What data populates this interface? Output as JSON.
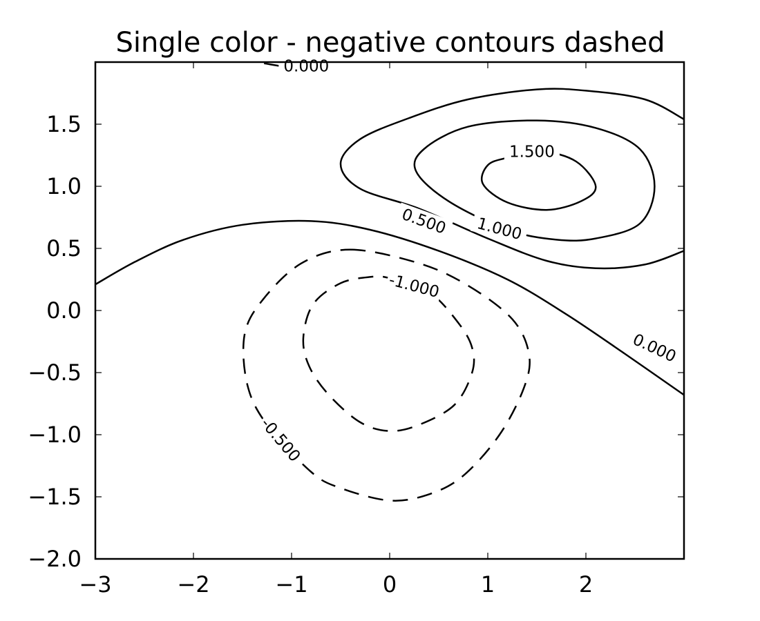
{
  "chart_data": {
    "type": "contour",
    "title": "Single color - negative contours dashed",
    "xlabel": "",
    "ylabel": "",
    "xlim": [
      -3.0,
      3.0
    ],
    "ylim": [
      -2.0,
      2.0
    ],
    "x_ticks": [
      {
        "value": -3,
        "label": "−3"
      },
      {
        "value": -2,
        "label": "−2"
      },
      {
        "value": -1,
        "label": "−1"
      },
      {
        "value": 0,
        "label": "0"
      },
      {
        "value": 1,
        "label": "1"
      },
      {
        "value": 2,
        "label": "2"
      }
    ],
    "y_ticks": [
      {
        "value": -2.0,
        "label": "−2.0"
      },
      {
        "value": -1.5,
        "label": "−1.5"
      },
      {
        "value": -1.0,
        "label": "−1.0"
      },
      {
        "value": -0.5,
        "label": "−0.5"
      },
      {
        "value": 0.0,
        "label": "0.0"
      },
      {
        "value": 0.5,
        "label": "0.5"
      },
      {
        "value": 1.0,
        "label": "1.0"
      },
      {
        "value": 1.5,
        "label": "1.5"
      }
    ],
    "grid": false,
    "line_color": "#000000",
    "negative_style": "dashed",
    "levels": [
      {
        "level": -1.0,
        "label": "-1.000",
        "label_at": [
          0.25,
          0.2
        ],
        "label_angle": 15,
        "closed": true,
        "points": [
          [
            0.0,
            0.26
          ],
          [
            0.4,
            0.15
          ],
          [
            0.7,
            -0.1
          ],
          [
            0.84,
            -0.3
          ],
          [
            0.84,
            -0.5
          ],
          [
            0.66,
            -0.76
          ],
          [
            0.3,
            -0.92
          ],
          [
            0.0,
            -0.97
          ],
          [
            -0.3,
            -0.9
          ],
          [
            -0.62,
            -0.68
          ],
          [
            -0.82,
            -0.45
          ],
          [
            -0.88,
            -0.22
          ],
          [
            -0.78,
            0.05
          ],
          [
            -0.5,
            0.22
          ],
          [
            -0.2,
            0.27
          ],
          [
            0.0,
            0.26
          ]
        ]
      },
      {
        "level": -0.5,
        "label": "-0.500",
        "label_at": [
          -1.11,
          -1.04
        ],
        "label_angle": 50,
        "closed": true,
        "points": [
          [
            -0.4,
            0.49
          ],
          [
            0.3,
            0.38
          ],
          [
            0.8,
            0.2
          ],
          [
            1.25,
            -0.07
          ],
          [
            1.42,
            -0.35
          ],
          [
            1.37,
            -0.62
          ],
          [
            1.12,
            -1.0
          ],
          [
            0.75,
            -1.33
          ],
          [
            0.4,
            -1.48
          ],
          [
            0.0,
            -1.53
          ],
          [
            -0.5,
            -1.43
          ],
          [
            -0.8,
            -1.3
          ],
          [
            -1.25,
            -0.92
          ],
          [
            -1.45,
            -0.6
          ],
          [
            -1.48,
            -0.2
          ],
          [
            -1.3,
            0.08
          ],
          [
            -0.9,
            0.38
          ],
          [
            -0.4,
            0.49
          ]
        ]
      },
      {
        "level": 0.0,
        "label": "0.000",
        "label_at": [
          2.7,
          -0.3
        ],
        "label_angle": 25,
        "closed": false,
        "points": [
          [
            -3.0,
            0.21
          ],
          [
            -2.6,
            0.39
          ],
          [
            -2.1,
            0.57
          ],
          [
            -1.5,
            0.69
          ],
          [
            -0.8,
            0.72
          ],
          [
            -0.2,
            0.65
          ],
          [
            0.5,
            0.48
          ],
          [
            1.2,
            0.25
          ],
          [
            1.8,
            -0.03
          ],
          [
            2.4,
            -0.35
          ],
          [
            3.0,
            -0.68
          ]
        ]
      },
      {
        "level": 0.0,
        "label": "0.000",
        "label_at": [
          -0.85,
          1.97
        ],
        "label_angle": 0,
        "closed": false,
        "points": [
          [
            -1.28,
            1.99
          ],
          [
            -0.95,
            1.95
          ],
          [
            -0.6,
            1.94
          ]
        ]
      },
      {
        "level": 0.5,
        "label": "0.500",
        "label_at": [
          0.35,
          0.72
        ],
        "label_angle": 20,
        "closed": false,
        "points": [
          [
            3.0,
            1.54
          ],
          [
            2.6,
            1.7
          ],
          [
            2.0,
            1.77
          ],
          [
            1.5,
            1.78
          ],
          [
            0.8,
            1.7
          ],
          [
            0.2,
            1.55
          ],
          [
            -0.3,
            1.38
          ],
          [
            -0.5,
            1.18
          ],
          [
            -0.3,
            0.98
          ],
          [
            0.3,
            0.82
          ],
          [
            1.0,
            0.58
          ],
          [
            1.6,
            0.4
          ],
          [
            2.1,
            0.34
          ],
          [
            2.6,
            0.37
          ],
          [
            3.0,
            0.48
          ]
        ]
      },
      {
        "level": 1.0,
        "label": "1.000",
        "label_at": [
          1.12,
          0.66
        ],
        "label_angle": 15,
        "closed": true,
        "points": [
          [
            1.5,
            1.53
          ],
          [
            2.1,
            1.47
          ],
          [
            2.55,
            1.3
          ],
          [
            2.7,
            1.0
          ],
          [
            2.55,
            0.7
          ],
          [
            2.1,
            0.58
          ],
          [
            1.7,
            0.57
          ],
          [
            1.2,
            0.65
          ],
          [
            0.6,
            0.88
          ],
          [
            0.27,
            1.12
          ],
          [
            0.35,
            1.3
          ],
          [
            0.8,
            1.48
          ],
          [
            1.5,
            1.53
          ]
        ]
      },
      {
        "level": 1.5,
        "label": "1.500",
        "label_at": [
          1.45,
          1.28
        ],
        "label_angle": 0,
        "closed": true,
        "points": [
          [
            1.2,
            1.23
          ],
          [
            1.55,
            1.28
          ],
          [
            1.9,
            1.2
          ],
          [
            2.1,
            1.0
          ],
          [
            1.95,
            0.88
          ],
          [
            1.6,
            0.81
          ],
          [
            1.2,
            0.87
          ],
          [
            0.95,
            1.02
          ],
          [
            1.0,
            1.17
          ],
          [
            1.2,
            1.23
          ]
        ]
      }
    ]
  }
}
